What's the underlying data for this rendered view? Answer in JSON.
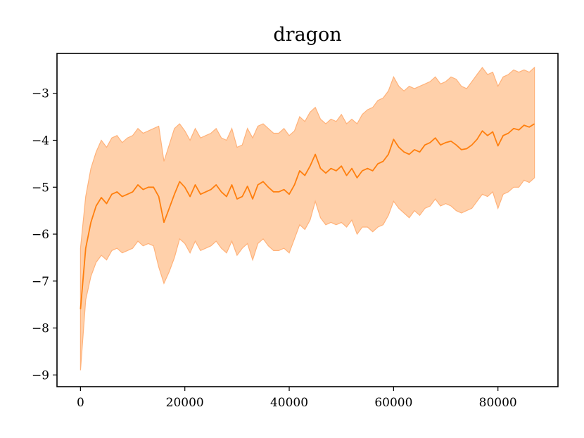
{
  "chart_data": {
    "type": "line",
    "title": "dragon",
    "xlabel": "",
    "ylabel": "",
    "xlim": [
      -4500,
      91500
    ],
    "ylim": [
      -9.25,
      -2.15
    ],
    "grid": false,
    "x_ticks": [
      0,
      20000,
      40000,
      60000,
      80000
    ],
    "x_tick_labels": [
      "0",
      "20000",
      "40000",
      "60000",
      "80000"
    ],
    "y_ticks": [
      -9,
      -8,
      -7,
      -6,
      -5,
      -4,
      -3
    ],
    "y_tick_labels": [
      "−9",
      "−8",
      "−7",
      "−6",
      "−5",
      "−4",
      "−3"
    ],
    "colors": {
      "line": "#ff7f0e",
      "band": "#ffd0aa",
      "band_edge": "#ffb27a"
    },
    "series": [
      {
        "x": [
          0,
          1000,
          2000,
          3000,
          4000,
          5000,
          6000,
          7000,
          8000,
          9000,
          10000,
          11000,
          12000,
          13000,
          14000,
          15000,
          16000,
          17000,
          18000,
          19000,
          20000,
          21000,
          22000,
          23000,
          24000,
          25000,
          26000,
          27000,
          28000,
          29000,
          30000,
          31000,
          32000,
          33000,
          34000,
          35000,
          36000,
          37000,
          38000,
          39000,
          40000,
          41000,
          42000,
          43000,
          44000,
          45000,
          46000,
          47000,
          48000,
          49000,
          50000,
          51000,
          52000,
          53000,
          54000,
          55000,
          56000,
          57000,
          58000,
          59000,
          60000,
          61000,
          62000,
          63000,
          64000,
          65000,
          66000,
          67000,
          68000,
          69000,
          70000,
          71000,
          72000,
          73000,
          74000,
          75000,
          76000,
          77000,
          78000,
          79000,
          80000,
          81000,
          82000,
          83000,
          84000,
          85000,
          86000,
          87000
        ],
        "values": [
          -7.6,
          -6.3,
          -5.75,
          -5.4,
          -5.22,
          -5.35,
          -5.15,
          -5.1,
          -5.2,
          -5.15,
          -5.1,
          -4.95,
          -5.05,
          -5.0,
          -5.0,
          -5.2,
          -5.75,
          -5.45,
          -5.15,
          -4.88,
          -5.0,
          -5.2,
          -4.95,
          -5.15,
          -5.1,
          -5.05,
          -4.95,
          -5.1,
          -5.2,
          -4.95,
          -5.25,
          -5.2,
          -4.98,
          -5.25,
          -4.95,
          -4.88,
          -5.0,
          -5.1,
          -5.1,
          -5.05,
          -5.15,
          -4.95,
          -4.65,
          -4.75,
          -4.55,
          -4.3,
          -4.6,
          -4.7,
          -4.6,
          -4.65,
          -4.55,
          -4.75,
          -4.6,
          -4.8,
          -4.65,
          -4.6,
          -4.65,
          -4.5,
          -4.45,
          -4.3,
          -3.98,
          -4.15,
          -4.25,
          -4.3,
          -4.2,
          -4.25,
          -4.1,
          -4.05,
          -3.95,
          -4.1,
          -4.05,
          -4.02,
          -4.1,
          -4.2,
          -4.18,
          -4.1,
          -3.98,
          -3.8,
          -3.9,
          -3.82,
          -4.12,
          -3.9,
          -3.85,
          -3.75,
          -3.78,
          -3.68,
          -3.72,
          -3.65
        ]
      }
    ],
    "band": {
      "upper": [
        -6.3,
        -5.2,
        -4.6,
        -4.25,
        -4.0,
        -4.15,
        -3.95,
        -3.9,
        -4.05,
        -3.95,
        -3.9,
        -3.75,
        -3.85,
        -3.8,
        -3.75,
        -3.7,
        -4.45,
        -4.1,
        -3.75,
        -3.65,
        -3.8,
        -4.0,
        -3.75,
        -3.95,
        -3.9,
        -3.85,
        -3.75,
        -3.95,
        -4.0,
        -3.75,
        -4.15,
        -4.1,
        -3.75,
        -3.95,
        -3.7,
        -3.65,
        -3.75,
        -3.85,
        -3.85,
        -3.75,
        -3.9,
        -3.8,
        -3.5,
        -3.6,
        -3.4,
        -3.3,
        -3.55,
        -3.65,
        -3.55,
        -3.6,
        -3.45,
        -3.65,
        -3.55,
        -3.65,
        -3.45,
        -3.35,
        -3.3,
        -3.15,
        -3.1,
        -2.95,
        -2.65,
        -2.85,
        -2.95,
        -2.85,
        -2.9,
        -2.85,
        -2.8,
        -2.75,
        -2.65,
        -2.8,
        -2.75,
        -2.65,
        -2.7,
        -2.85,
        -2.9,
        -2.75,
        -2.6,
        -2.45,
        -2.6,
        -2.55,
        -2.85,
        -2.65,
        -2.6,
        -2.5,
        -2.55,
        -2.5,
        -2.55,
        -2.45
      ],
      "lower": [
        -8.9,
        -7.4,
        -6.9,
        -6.6,
        -6.45,
        -6.55,
        -6.35,
        -6.3,
        -6.4,
        -6.35,
        -6.3,
        -6.15,
        -6.25,
        -6.2,
        -6.25,
        -6.7,
        -7.05,
        -6.8,
        -6.5,
        -6.1,
        -6.2,
        -6.4,
        -6.15,
        -6.35,
        -6.3,
        -6.25,
        -6.15,
        -6.3,
        -6.4,
        -6.15,
        -6.45,
        -6.3,
        -6.2,
        -6.55,
        -6.2,
        -6.1,
        -6.25,
        -6.35,
        -6.35,
        -6.3,
        -6.4,
        -6.1,
        -5.8,
        -5.9,
        -5.7,
        -5.3,
        -5.65,
        -5.8,
        -5.75,
        -5.8,
        -5.75,
        -5.85,
        -5.7,
        -6.0,
        -5.85,
        -5.85,
        -5.95,
        -5.85,
        -5.8,
        -5.6,
        -5.3,
        -5.45,
        -5.55,
        -5.65,
        -5.5,
        -5.6,
        -5.45,
        -5.4,
        -5.25,
        -5.4,
        -5.35,
        -5.4,
        -5.5,
        -5.55,
        -5.5,
        -5.45,
        -5.3,
        -5.15,
        -5.2,
        -5.1,
        -5.45,
        -5.15,
        -5.1,
        -5.0,
        -5.0,
        -4.85,
        -4.9,
        -4.8
      ]
    }
  }
}
